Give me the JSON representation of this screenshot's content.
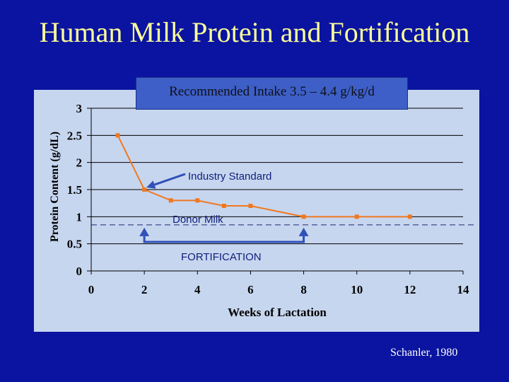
{
  "slide": {
    "title": "Human Milk Protein and Fortification",
    "citation": "Schanler, 1980"
  },
  "colors": {
    "background": "#0a14a0",
    "title": "#ffff99",
    "plot_area": "#c7d6ef",
    "series_line": "#f07820",
    "annotation_arrow": "#3050b8",
    "callout_box": "#3d5fc7"
  },
  "chart_data": {
    "type": "line",
    "title": "",
    "xlabel": "Weeks of Lactation",
    "ylabel": "Protein Content (g/dL)",
    "xlim": [
      0,
      14
    ],
    "ylim": [
      0,
      3
    ],
    "x_ticks": [
      "0",
      "2",
      "4",
      "6",
      "8",
      "10",
      "12",
      "14"
    ],
    "y_ticks": [
      "0",
      "0.5",
      "1",
      "1.5",
      "2",
      "2.5",
      "3"
    ],
    "grid": "horizontal",
    "x": [
      1,
      2,
      3,
      4,
      5,
      6,
      8,
      10,
      12
    ],
    "series": [
      {
        "values": [
          2.5,
          1.5,
          1.3,
          1.3,
          1.2,
          1.2,
          1.0,
          1.0,
          1.0
        ]
      }
    ],
    "reference_line": {
      "label": "Donor Milk",
      "y": 0.85,
      "style": "dashed"
    },
    "annotations": {
      "recommended_intake": "Recommended Intake 3.5 – 4.4 g/kg/d",
      "industry_standard": "Industry Standard",
      "fortification": "FORTIFICATION",
      "fortification_range": [
        2,
        8
      ]
    }
  }
}
